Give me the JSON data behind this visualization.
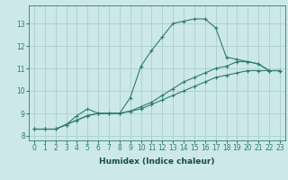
{
  "line1_x": [
    0,
    1,
    2,
    3,
    4,
    5,
    6,
    7,
    8,
    9,
    10,
    11,
    12,
    13,
    14,
    15,
    16,
    17,
    18,
    19,
    20,
    21,
    22,
    23
  ],
  "line1_y": [
    8.3,
    8.3,
    8.3,
    8.5,
    8.9,
    9.2,
    9.0,
    9.0,
    9.0,
    9.7,
    11.1,
    11.8,
    12.4,
    13.0,
    13.1,
    13.2,
    13.2,
    12.8,
    11.5,
    11.4,
    11.3,
    11.2,
    10.9,
    10.9
  ],
  "line2_x": [
    0,
    1,
    2,
    3,
    4,
    5,
    6,
    7,
    8,
    9,
    10,
    11,
    12,
    13,
    14,
    15,
    16,
    17,
    18,
    19,
    20,
    21,
    22,
    23
  ],
  "line2_y": [
    8.3,
    8.3,
    8.3,
    8.5,
    8.7,
    8.9,
    9.0,
    9.0,
    9.0,
    9.1,
    9.3,
    9.5,
    9.8,
    10.1,
    10.4,
    10.6,
    10.8,
    11.0,
    11.1,
    11.3,
    11.3,
    11.2,
    10.9,
    10.9
  ],
  "line3_x": [
    0,
    1,
    2,
    3,
    4,
    5,
    6,
    7,
    8,
    9,
    10,
    11,
    12,
    13,
    14,
    15,
    16,
    17,
    18,
    19,
    20,
    21,
    22,
    23
  ],
  "line3_y": [
    8.3,
    8.3,
    8.3,
    8.5,
    8.7,
    8.9,
    9.0,
    9.0,
    9.0,
    9.1,
    9.2,
    9.4,
    9.6,
    9.8,
    10.0,
    10.2,
    10.4,
    10.6,
    10.7,
    10.8,
    10.9,
    10.9,
    10.9,
    10.9
  ],
  "bg_color": "#cce8e8",
  "line_color": "#2e7d6e",
  "grid_color": "#aacece",
  "xlabel": "Humidex (Indice chaleur)",
  "xlim": [
    -0.5,
    23.5
  ],
  "ylim": [
    7.8,
    13.8
  ],
  "yticks": [
    8,
    9,
    10,
    11,
    12,
    13
  ],
  "xticks": [
    0,
    1,
    2,
    3,
    4,
    5,
    6,
    7,
    8,
    9,
    10,
    11,
    12,
    13,
    14,
    15,
    16,
    17,
    18,
    19,
    20,
    21,
    22,
    23
  ],
  "xlabel_fontsize": 6.5,
  "tick_fontsize": 5.5,
  "marker": "+"
}
